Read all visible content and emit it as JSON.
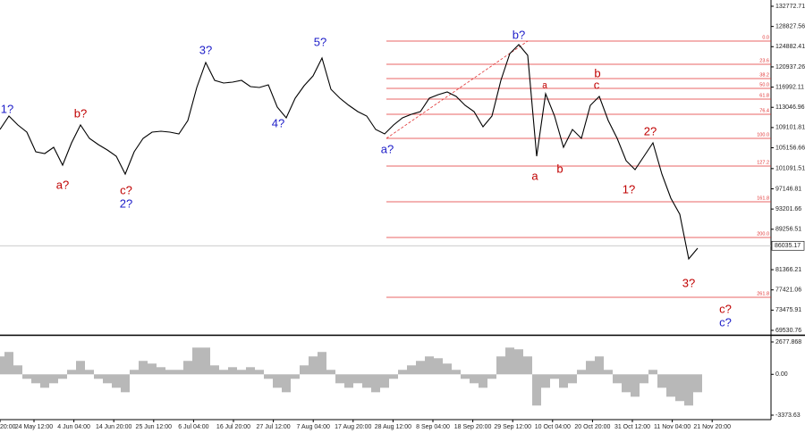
{
  "chart_data": [
    {
      "type": "line",
      "color": "#000000",
      "values": [
        108730,
        111350,
        109600,
        108210,
        104380,
        104030,
        105250,
        101770,
        106120,
        109600,
        106990,
        105770,
        104730,
        103510,
        100020,
        104380,
        106990,
        108210,
        108390,
        108210,
        107860,
        110480,
        116920,
        121800,
        118310,
        117790,
        117970,
        118310,
        117100,
        116920,
        117440,
        113090,
        111000,
        114830,
        117270,
        119190,
        122670,
        116570,
        114830,
        113440,
        112220,
        111350,
        108730,
        107860,
        109600,
        111000,
        111690,
        112220,
        114830,
        115530,
        116050,
        115180,
        113440,
        112220,
        109260,
        111350,
        118310,
        123540,
        125280,
        123190,
        103510,
        115700,
        111350,
        105250,
        108730,
        106990,
        113440,
        115180,
        110480,
        106990,
        102640,
        100890,
        103510,
        106120,
        100020,
        95320,
        92180,
        83470,
        85560
      ],
      "ylim": [
        68660,
        133992
      ],
      "yticks": [
        132772.71,
        128827.56,
        124882.41,
        120937.26,
        116992.11,
        113046.96,
        109101.81,
        105156.66,
        101091.51,
        97146.81,
        93201.66,
        89256.51,
        81366.21,
        77421.06,
        73475.91,
        69530.76
      ],
      "last_price": 86035.17,
      "x_labels": [
        "20:00",
        "24 May 12:00",
        "4 Jun 04:00",
        "14 Jun 20:00",
        "25 Jun 12:00",
        "6 Jul 04:00",
        "16 Jul 20:00",
        "27 Jul 12:00",
        "7 Aug 04:00",
        "17 Aug 20:00",
        "28 Aug 12:00",
        "8 Sep 04:00",
        "18 Sep 20:00",
        "29 Sep 12:00",
        "10 Oct 04:00",
        "20 Oct 20:00",
        "31 Oct 12:00",
        "11 Nov 04:00",
        "21 Nov 20:00"
      ],
      "levels": [
        {
          "label": "0.0",
          "price": 125979
        },
        {
          "label": "23.6",
          "price": 121450
        },
        {
          "label": "38.2",
          "price": 118662
        },
        {
          "label": "50.0",
          "price": 116746
        },
        {
          "label": "61.8",
          "price": 114656
        },
        {
          "label": "76.4",
          "price": 111694
        },
        {
          "label": "100.0",
          "price": 106991
        },
        {
          "label": "127.2",
          "price": 101591
        },
        {
          "label": "161.8",
          "price": 94624
        },
        {
          "label": "200.0",
          "price": 87654
        },
        {
          "label": "261.8",
          "price": 75983
        }
      ],
      "level_color": "#e03030",
      "annotations": [
        {
          "text": "1?",
          "color": "#1c1cc8"
        },
        {
          "text": "2?",
          "color": "#1c1cc8"
        },
        {
          "text": "3?",
          "color": "#1c1cc8"
        },
        {
          "text": "4?",
          "color": "#1c1cc8"
        },
        {
          "text": "5?",
          "color": "#1c1cc8"
        },
        {
          "text": "a?",
          "color": "#1c1cc8"
        },
        {
          "text": "b?",
          "color": "#1c1cc8"
        },
        {
          "text": "c?",
          "color": "#1c1cc8"
        },
        {
          "text": "a?",
          "color": "#c00000"
        },
        {
          "text": "b?",
          "color": "#c00000"
        },
        {
          "text": "c?",
          "color": "#c00000"
        },
        {
          "text": "a",
          "color": "#c00000"
        },
        {
          "text": "b",
          "color": "#c00000"
        },
        {
          "text": "a",
          "color": "#c00000"
        },
        {
          "text": "b",
          "color": "#c00000"
        },
        {
          "text": "c",
          "color": "#c00000"
        },
        {
          "text": "1?",
          "color": "#c00000"
        },
        {
          "text": "2?",
          "color": "#c00000"
        },
        {
          "text": "3?",
          "color": "#c00000"
        },
        {
          "text": "c?",
          "color": "#c00000"
        }
      ]
    },
    {
      "type": "bar",
      "color": "#b8b8b8",
      "values": [
        1480,
        1850,
        740,
        -370,
        -740,
        -1110,
        -740,
        -370,
        370,
        1110,
        370,
        -370,
        -740,
        -1110,
        -1480,
        370,
        1110,
        890,
        590,
        370,
        370,
        1110,
        2210,
        2210,
        740,
        370,
        590,
        370,
        590,
        370,
        -370,
        -1110,
        -1480,
        -370,
        740,
        1480,
        1850,
        370,
        -740,
        -1110,
        -740,
        -1110,
        -1480,
        -1110,
        -370,
        370,
        740,
        1110,
        1480,
        1330,
        890,
        370,
        -370,
        -740,
        -1110,
        -370,
        1480,
        2210,
        2070,
        1480,
        -2580,
        -1110,
        -370,
        -1110,
        -740,
        370,
        1110,
        1480,
        370,
        -740,
        -1480,
        -1850,
        -740,
        370,
        -1110,
        -1850,
        -2210,
        -2580,
        -1480
      ],
      "ylim": [
        -3743,
        3047
      ],
      "yticks": [
        2677.868,
        {
          "value": 0,
          "label": "0.00"
        },
        -3373.63
      ]
    }
  ]
}
